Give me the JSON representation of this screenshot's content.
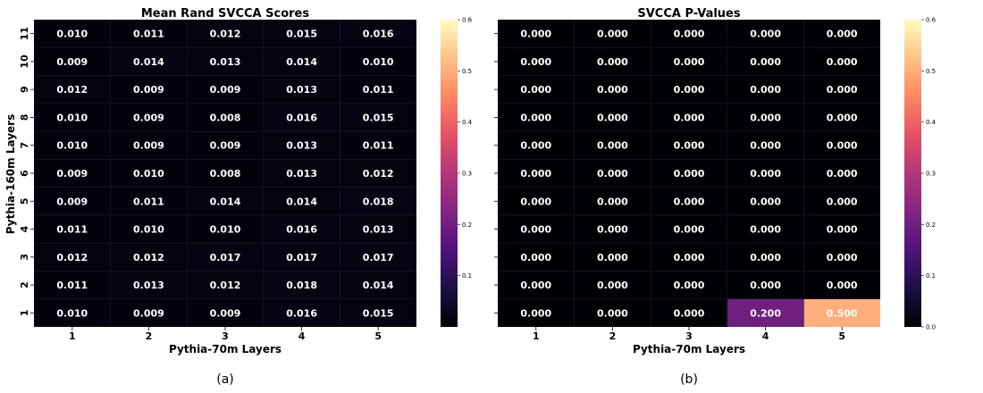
{
  "chart_data": [
    {
      "type": "heatmap",
      "title": "Mean Rand SVCCA Scores",
      "xlabel": "Pythia-70m Layers",
      "ylabel": "Pythia-160m Layers",
      "caption": "(a)",
      "x_categories": [
        "1",
        "2",
        "3",
        "4",
        "5"
      ],
      "y_categories": [
        "11",
        "10",
        "9",
        "8",
        "7",
        "6",
        "5",
        "4",
        "3",
        "2",
        "1"
      ],
      "values": [
        [
          0.01,
          0.011,
          0.012,
          0.015,
          0.016
        ],
        [
          0.009,
          0.014,
          0.013,
          0.014,
          0.01
        ],
        [
          0.012,
          0.009,
          0.009,
          0.013,
          0.011
        ],
        [
          0.01,
          0.009,
          0.008,
          0.016,
          0.015
        ],
        [
          0.01,
          0.009,
          0.009,
          0.013,
          0.011
        ],
        [
          0.009,
          0.01,
          0.008,
          0.013,
          0.012
        ],
        [
          0.009,
          0.011,
          0.014,
          0.014,
          0.018
        ],
        [
          0.011,
          0.01,
          0.01,
          0.016,
          0.013
        ],
        [
          0.012,
          0.012,
          0.017,
          0.017,
          0.017
        ],
        [
          0.011,
          0.013,
          0.012,
          0.018,
          0.014
        ],
        [
          0.01,
          0.009,
          0.009,
          0.016,
          0.015
        ]
      ],
      "colormap": "magma",
      "colorbar": {
        "range": [
          0.0,
          0.6
        ],
        "ticks": [
          "0.1",
          "0.2",
          "0.3",
          "0.4",
          "0.5",
          "0.6"
        ]
      },
      "value_format": "3 decimals"
    },
    {
      "type": "heatmap",
      "title": "SVCCA P-Values",
      "xlabel": "Pythia-70m Layers",
      "ylabel": "",
      "caption": "(b)",
      "x_categories": [
        "1",
        "2",
        "3",
        "4",
        "5"
      ],
      "y_categories": [
        "11",
        "10",
        "9",
        "8",
        "7",
        "6",
        "5",
        "4",
        "3",
        "2",
        "1"
      ],
      "values": [
        [
          0.0,
          0.0,
          0.0,
          0.0,
          0.0
        ],
        [
          0.0,
          0.0,
          0.0,
          0.0,
          0.0
        ],
        [
          0.0,
          0.0,
          0.0,
          0.0,
          0.0
        ],
        [
          0.0,
          0.0,
          0.0,
          0.0,
          0.0
        ],
        [
          0.0,
          0.0,
          0.0,
          0.0,
          0.0
        ],
        [
          0.0,
          0.0,
          0.0,
          0.0,
          0.0
        ],
        [
          0.0,
          0.0,
          0.0,
          0.0,
          0.0
        ],
        [
          0.0,
          0.0,
          0.0,
          0.0,
          0.0
        ],
        [
          0.0,
          0.0,
          0.0,
          0.0,
          0.0
        ],
        [
          0.0,
          0.0,
          0.0,
          0.0,
          0.0
        ],
        [
          0.0,
          0.0,
          0.0,
          0.2,
          0.5
        ]
      ],
      "colormap": "magma",
      "colorbar": {
        "range": [
          0.0,
          0.6
        ],
        "ticks": [
          "0.0",
          "0.1",
          "0.2",
          "0.3",
          "0.4",
          "0.5",
          "0.6"
        ]
      },
      "value_format": "3 decimals"
    }
  ]
}
